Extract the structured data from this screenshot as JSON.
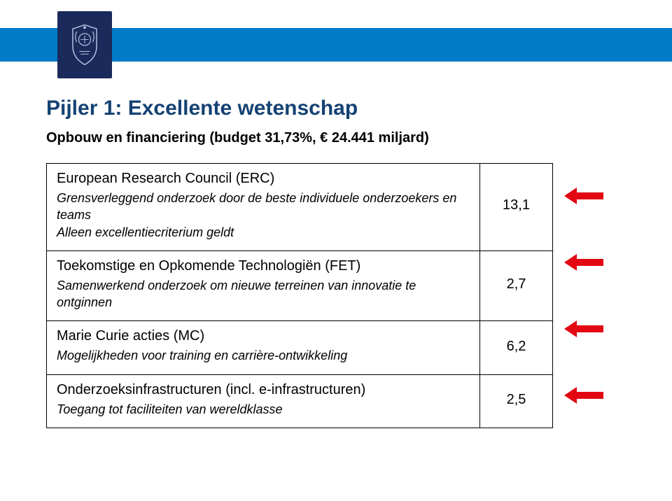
{
  "brand_colors": {
    "blue_band": "#007bc7",
    "title_blue": "#154273",
    "arrow_red": "#e30613",
    "logo_bg": "#1a2a5a"
  },
  "title": "Pijler 1: Excellente wetenschap",
  "subtitle": "Opbouw en financiering (budget 31,73%, € 24.441 miljard)",
  "rows": [
    {
      "heading": "European Research Council (ERC)",
      "desc": "Grensverleggend onderzoek door de beste individuele onderzoekers en teams\nAlleen excellentiecriterium geldt",
      "value": "13,1"
    },
    {
      "heading": "Toekomstige en Opkomende Technologiën (FET)",
      "desc": "Samenwerkend onderzoek om nieuwe terreinen van innovatie te ontginnen",
      "value": "2,7"
    },
    {
      "heading": "Marie Curie acties (MC)",
      "desc": "Mogelijkheden voor training en carrière-ontwikkeling",
      "value": "6,2"
    },
    {
      "heading": "Onderzoeksinfrastructuren (incl. e-infrastructuren)",
      "desc": "Toegang tot faciliteiten van wereldklasse",
      "value": "2,5"
    }
  ]
}
